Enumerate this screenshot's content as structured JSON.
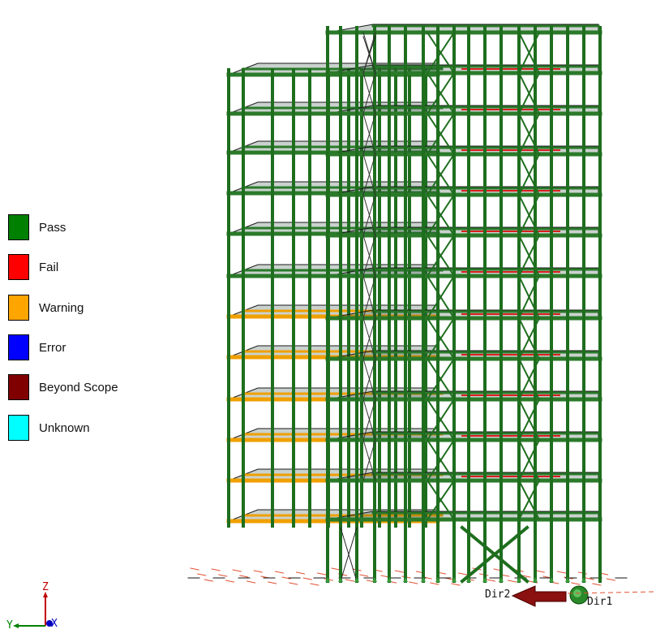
{
  "legend": {
    "items": [
      {
        "label": "Pass",
        "color": "#008000"
      },
      {
        "label": "Fail",
        "color": "#ff0000"
      },
      {
        "label": "Warning",
        "color": "#ffa500"
      },
      {
        "label": "Error",
        "color": "#0000ff"
      },
      {
        "label": "Beyond Scope",
        "color": "#800000"
      },
      {
        "label": "Unknown",
        "color": "#00ffff"
      }
    ]
  },
  "axes": {
    "z": "Z",
    "y": "Y",
    "x": "X"
  },
  "load_directions": {
    "dir1": "Dir1",
    "dir2": "Dir2"
  },
  "colors": {
    "column": "#1e6e1e",
    "beam": "#2a7a2a",
    "warning_beam": "#f0a000",
    "fail_beam": "#d81e1e",
    "slab": "#1a1a1a",
    "arrow": "#8b1010"
  }
}
